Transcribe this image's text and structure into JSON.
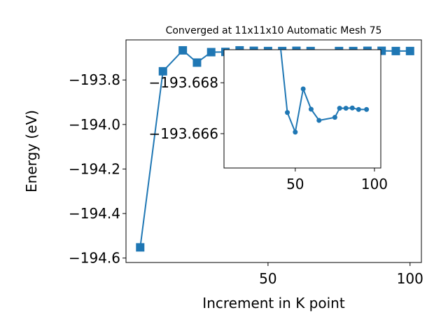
{
  "colors": {
    "series": "#1f77b4",
    "axis": "#000000",
    "background": "#ffffff"
  },
  "chart_data": [
    {
      "type": "line",
      "marker": "square",
      "title": "Converged at 11x11x10 Automatic Mesh 75",
      "xlabel": "Increment in K point",
      "ylabel": "Energy (eV)",
      "xlim": [
        0,
        104
      ],
      "ylim": [
        -194.62,
        -193.62
      ],
      "xticks": [
        50,
        100
      ],
      "xtick_labels": [
        "50",
        "100"
      ],
      "yticks": [
        -194.6,
        -194.4,
        -194.2,
        -194.0,
        -193.8
      ],
      "ytick_labels": [
        "−194.6",
        "−194.4",
        "−194.2",
        "−194.0",
        "−193.8"
      ],
      "grid": false,
      "series": [
        {
          "x": [
            5,
            13,
            20,
            25,
            30,
            35,
            40,
            45,
            50,
            55,
            60,
            65,
            75,
            80,
            85,
            90,
            95,
            100
          ],
          "y": [
            -194.552,
            -193.761,
            -193.667,
            -193.722,
            -193.675,
            -193.674,
            -193.667,
            -193.669,
            -193.67,
            -193.67,
            -193.669,
            -193.67,
            -193.67,
            -193.67,
            -193.669,
            -193.669,
            -193.67,
            -193.67
          ]
        }
      ]
    },
    {
      "type": "line",
      "marker": "circle",
      "title": "",
      "xlabel": "",
      "ylabel": "",
      "xlim": [
        5,
        104
      ],
      "ylim": [
        -193.66465,
        -193.6693
      ],
      "xticks": [
        50,
        100
      ],
      "xtick_labels": [
        "50",
        "100"
      ],
      "yticks": [
        -193.668,
        -193.666
      ],
      "ytick_labels": [
        "−193.668",
        "−193.666"
      ],
      "grid": false,
      "series": [
        {
          "x": [
            40,
            45,
            50,
            55,
            60,
            65,
            75,
            78,
            82,
            86,
            90,
            95
          ],
          "y": [
            -193.6698,
            -193.66683,
            -193.66606,
            -193.66776,
            -193.66696,
            -193.66652,
            -193.66664,
            -193.667,
            -193.667,
            -193.66701,
            -193.66695,
            -193.66695
          ]
        }
      ]
    }
  ]
}
